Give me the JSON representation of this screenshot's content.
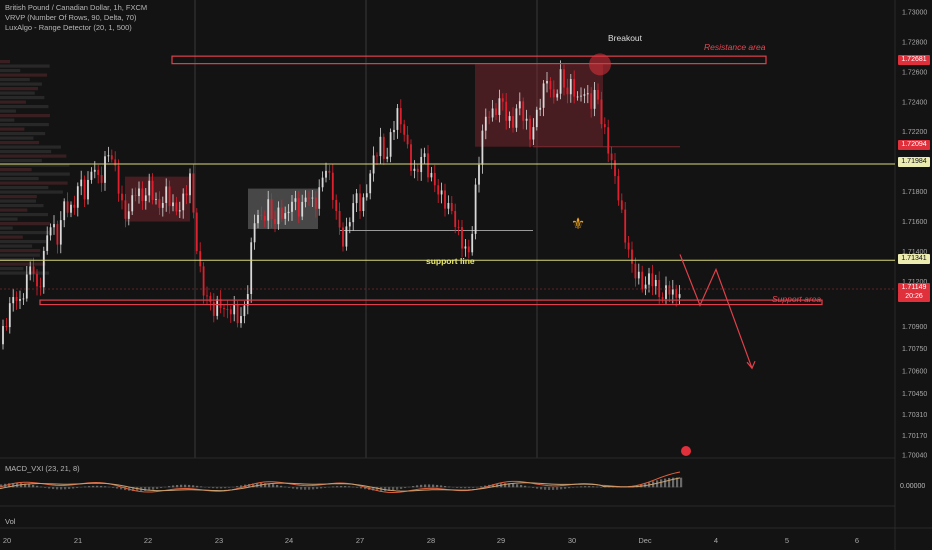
{
  "header": {
    "symbol_line": "British Pound / Canadian Dollar, 1h, FXCM",
    "indicator_1": "VRVP (Number Of Rows, 90, Delta, 70)",
    "indicator_2": "LuxAlgo - Range Detector (20, 1, 500)"
  },
  "annotations": {
    "breakout": "Breakout",
    "resistance": "Resistance area",
    "support_area": "Support area",
    "support_line": "support line"
  },
  "price_axis": {
    "labels": [
      "1.73000",
      "1.72800",
      "1.72600",
      "1.72400",
      "1.72200",
      "1.71800",
      "1.71600",
      "1.71400",
      "1.71200",
      "1.70900",
      "1.70750",
      "1.70600",
      "1.70450",
      "1.70310",
      "1.70170",
      "1.70040"
    ],
    "tags": {
      "resistance_value": "1.72681",
      "upper_value": "1.72094",
      "yellow_upper": "1.71984",
      "yellow_lower": "1.71341",
      "current_price": "1.71149",
      "countdown": "20:26"
    }
  },
  "time_axis": {
    "labels": [
      "20",
      "21",
      "22",
      "23",
      "24",
      "27",
      "28",
      "29",
      "30",
      "Dec",
      "4",
      "5",
      "6"
    ]
  },
  "macd": {
    "label": "MACD_VXI (23, 21, 8)",
    "zero_label": "0.00000"
  },
  "volume": {
    "label": "Vol"
  },
  "colors": {
    "background": "#131313",
    "up_candle": "#d9d9d9",
    "down_candle": "#e0202e",
    "resistance": "#e0404a",
    "support_line": "#d8d87a",
    "range_box_red": "#8a2a33",
    "range_box_gray": "#888888",
    "macd_line": "#e0603a",
    "signal_line": "#c8a070"
  },
  "chart_data": {
    "type": "candlestick",
    "symbol": "GBPCAD",
    "timeframe": "1h",
    "ylim": [
      1.7004,
      1.73
    ],
    "levels": {
      "resistance_area": 1.7268,
      "yellow_upper": 1.71984,
      "yellow_lower": 1.71341,
      "support_area": 1.7106,
      "current_price": 1.71149
    },
    "path": [
      [
        0,
        1.7078
      ],
      [
        8,
        1.7095
      ],
      [
        14,
        1.711
      ],
      [
        20,
        1.7102
      ],
      [
        26,
        1.7118
      ],
      [
        32,
        1.7134
      ],
      [
        38,
        1.7108
      ],
      [
        44,
        1.714
      ],
      [
        50,
        1.7162
      ],
      [
        58,
        1.715
      ],
      [
        64,
        1.7175
      ],
      [
        72,
        1.7168
      ],
      [
        80,
        1.719
      ],
      [
        86,
        1.7176
      ],
      [
        92,
        1.7198
      ],
      [
        100,
        1.7184
      ],
      [
        108,
        1.7205
      ],
      [
        114,
        1.7196
      ],
      [
        120,
        1.7176
      ],
      [
        124,
        1.716
      ],
      [
        130,
        1.7168
      ],
      [
        136,
        1.7182
      ],
      [
        142,
        1.7175
      ],
      [
        150,
        1.7186
      ],
      [
        158,
        1.717
      ],
      [
        166,
        1.7182
      ],
      [
        176,
        1.7168
      ],
      [
        184,
        1.7176
      ],
      [
        190,
        1.719
      ],
      [
        194,
        1.716
      ],
      [
        198,
        1.7135
      ],
      [
        202,
        1.7115
      ],
      [
        208,
        1.7105
      ],
      [
        214,
        1.7098
      ],
      [
        220,
        1.7104
      ],
      [
        226,
        1.7096
      ],
      [
        232,
        1.7102
      ],
      [
        238,
        1.7094
      ],
      [
        244,
        1.71
      ],
      [
        248,
        1.7118
      ],
      [
        252,
        1.715
      ],
      [
        256,
        1.717
      ],
      [
        262,
        1.7162
      ],
      [
        268,
        1.7174
      ],
      [
        274,
        1.716
      ],
      [
        280,
        1.717
      ],
      [
        286,
        1.7162
      ],
      [
        292,
        1.7175
      ],
      [
        300,
        1.7165
      ],
      [
        308,
        1.7178
      ],
      [
        314,
        1.7166
      ],
      [
        320,
        1.718
      ],
      [
        326,
        1.7195
      ],
      [
        332,
        1.718
      ],
      [
        338,
        1.7158
      ],
      [
        344,
        1.7145
      ],
      [
        350,
        1.7165
      ],
      [
        356,
        1.718
      ],
      [
        362,
        1.717
      ],
      [
        368,
        1.7188
      ],
      [
        374,
        1.7205
      ],
      [
        380,
        1.7215
      ],
      [
        386,
        1.72
      ],
      [
        392,
        1.7222
      ],
      [
        398,
        1.7232
      ],
      [
        404,
        1.7218
      ],
      [
        410,
        1.7198
      ],
      [
        416,
        1.7186
      ],
      [
        422,
        1.7205
      ],
      [
        428,
        1.7192
      ],
      [
        436,
        1.7182
      ],
      [
        444,
        1.7174
      ],
      [
        452,
        1.7168
      ],
      [
        458,
        1.7155
      ],
      [
        464,
        1.7145
      ],
      [
        470,
        1.714
      ],
      [
        474,
        1.7172
      ],
      [
        478,
        1.7198
      ],
      [
        482,
        1.722
      ],
      [
        488,
        1.7235
      ],
      [
        494,
        1.723
      ],
      [
        500,
        1.7242
      ],
      [
        506,
        1.723
      ],
      [
        512,
        1.722
      ],
      [
        518,
        1.7238
      ],
      [
        524,
        1.7228
      ],
      [
        530,
        1.7215
      ],
      [
        536,
        1.7228
      ],
      [
        542,
        1.7245
      ],
      [
        548,
        1.7258
      ],
      [
        554,
        1.724
      ],
      [
        560,
        1.7262
      ],
      [
        566,
        1.7248
      ],
      [
        572,
        1.7255
      ],
      [
        578,
        1.7242
      ],
      [
        584,
        1.725
      ],
      [
        590,
        1.7238
      ],
      [
        596,
        1.7248
      ],
      [
        602,
        1.7225
      ],
      [
        608,
        1.7208
      ],
      [
        614,
        1.719
      ],
      [
        620,
        1.717
      ],
      [
        624,
        1.715
      ],
      [
        628,
        1.714
      ],
      [
        632,
        1.7128
      ],
      [
        638,
        1.7122
      ],
      [
        644,
        1.7115
      ],
      [
        650,
        1.7125
      ],
      [
        656,
        1.7118
      ],
      [
        662,
        1.711
      ],
      [
        668,
        1.712
      ],
      [
        674,
        1.7112
      ],
      [
        680,
        1.7115
      ]
    ],
    "projection": [
      [
        680,
        1.7138
      ],
      [
        700,
        1.7104
      ],
      [
        716,
        1.7128
      ],
      [
        752,
        1.7062
      ]
    ]
  }
}
